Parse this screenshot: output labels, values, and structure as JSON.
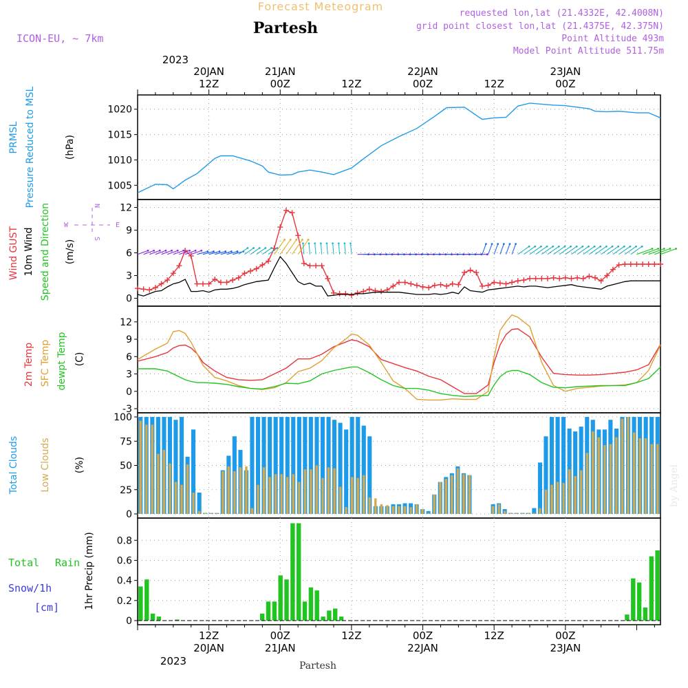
{
  "header": {
    "title": "Partesh",
    "subtitle": "Forecast Meteogram",
    "model": "ICON-EU, ~ 7km",
    "requested": "requested lon,lat (21.4332E, 42.4008N)",
    "closest": "grid point closest lon,lat (21.4375E, 42.375N)",
    "point_alt": "Point Altitude 493m",
    "model_alt": "Model Point Altitude 511.75m"
  },
  "top_axis": {
    "year": "2023",
    "labels": [
      {
        "d": "20JAN",
        "h": "12Z",
        "x": 12
      },
      {
        "d": "21JAN",
        "h": "00Z",
        "x": 24
      },
      {
        "d": "",
        "h": "12Z",
        "x": 36
      },
      {
        "d": "22JAN",
        "h": "00Z",
        "x": 48
      },
      {
        "d": "",
        "h": "12Z",
        "x": 60
      },
      {
        "d": "23JAN",
        "h": "00Z",
        "x": 72
      }
    ]
  },
  "bottom_axis": {
    "year": "2023",
    "footer": "Partesh",
    "labels": [
      {
        "h": "12Z",
        "d": "20JAN",
        "x": 12
      },
      {
        "h": "00Z",
        "d": "21JAN",
        "x": 24
      },
      {
        "h": "12Z",
        "d": "",
        "x": 36
      },
      {
        "h": "00Z",
        "d": "22JAN",
        "x": 48
      },
      {
        "h": "12Z",
        "d": "",
        "x": 60
      },
      {
        "h": "00Z",
        "d": "23JAN",
        "x": 72
      }
    ]
  },
  "panel_labels": {
    "pressure": {
      "a": "PRMSL",
      "b": "Pressure Reduced to MSL",
      "unit": "(hPa)"
    },
    "wind": {
      "gust": "Wind GUST",
      "w10": "10m Wind",
      "sd": "Speed and Direction",
      "unit": "(m/s)",
      "compass_w": "W",
      "compass_e": "E",
      "compass_n": "N",
      "compass_s": "S"
    },
    "temp": {
      "t2m": "2m Temp",
      "sfc": "SFC Temp",
      "dew": "dewpt Temp",
      "unit": "(C)"
    },
    "clouds": {
      "total": "Total Clouds",
      "low": "Low Clouds",
      "unit": "(%)"
    },
    "precip": {
      "rain_a": "Total",
      "rain_b": "Rain",
      "snow": "Snow/1h",
      "snow_unit": "[cm]",
      "axis": "1hr Precip (mm)"
    }
  },
  "watermark": "by Angel",
  "colors": {
    "pressure": "#1e9be8",
    "gust": "#e8343c",
    "wind10": "#000000",
    "t2m": "#e8343c",
    "sfc": "#e0a030",
    "dew": "#22c422",
    "total_clouds": "#1e9be8",
    "low_clouds": "#d4aa50",
    "rain": "#22c422",
    "purple": "#b060e0",
    "orange_title": "#f0c070",
    "blue_label": "#1e9be8",
    "snow": "#3a3ae0"
  },
  "chart_data": [
    {
      "type": "line",
      "name": "pressure",
      "x_hours": [
        0,
        3,
        5,
        6,
        8,
        10,
        13,
        14,
        16,
        19,
        21,
        22,
        24,
        26,
        27,
        29,
        31,
        33,
        36,
        38,
        41,
        44,
        47,
        50,
        52,
        55,
        58,
        60,
        62,
        64,
        66,
        70,
        72,
        76,
        77,
        79,
        81,
        84,
        86,
        88
      ],
      "series": [
        {
          "name": "PRMSL",
          "values": [
            1003.5,
            1005.2,
            1005.1,
            1004.3,
            1006,
            1007.3,
            1010.3,
            1010.8,
            1010.8,
            1009.8,
            1008.8,
            1007.6,
            1007.0,
            1007.1,
            1007.6,
            1008.0,
            1007.6,
            1007.1,
            1008.4,
            1010.2,
            1012.8,
            1014.6,
            1016.2,
            1018.6,
            1020.3,
            1020.4,
            1018.0,
            1018.3,
            1018.4,
            1020.6,
            1021.2,
            1020.8,
            1020.7,
            1020.1,
            1019.6,
            1019.5,
            1019.6,
            1019.3,
            1019.3,
            1018.3
          ]
        }
      ],
      "ylim": [
        1003,
        1022
      ],
      "yticks": [
        1005,
        1010,
        1015,
        1020
      ]
    },
    {
      "type": "line",
      "name": "wind",
      "x_hours": [
        0,
        1,
        2,
        3,
        4,
        5,
        6,
        7,
        8,
        9,
        10,
        11,
        12,
        13,
        14,
        15,
        16,
        17,
        18,
        19,
        20,
        21,
        22,
        23,
        24,
        25,
        26,
        27,
        28,
        29,
        30,
        31,
        32,
        33,
        34,
        35,
        36,
        37,
        38,
        39,
        40,
        41,
        42,
        43,
        44,
        45,
        46,
        47,
        48,
        49,
        50,
        51,
        52,
        53,
        54,
        55,
        56,
        57,
        58,
        59,
        60,
        61,
        62,
        63,
        64,
        65,
        66,
        67,
        68,
        69,
        70,
        71,
        72,
        73,
        74,
        75,
        76,
        77,
        78,
        79,
        80,
        81,
        82,
        83,
        84,
        85,
        86,
        87,
        88
      ],
      "series": [
        {
          "name": "Wind GUST",
          "values": [
            1.3,
            1.2,
            1.1,
            1.4,
            1.9,
            2.4,
            3.3,
            4.3,
            6.3,
            5.6,
            1.9,
            1.9,
            1.9,
            2.5,
            2.1,
            2.1,
            2.4,
            2.7,
            3.3,
            3.6,
            3.9,
            4.4,
            4.9,
            6.6,
            9.4,
            11.6,
            11.3,
            8.3,
            4.6,
            4.3,
            4.3,
            4.3,
            2.6,
            0.7,
            0.6,
            0.6,
            0.4,
            0.7,
            0.9,
            1.2,
            1.0,
            0.9,
            1.1,
            1.6,
            2.1,
            2.1,
            1.9,
            1.7,
            1.5,
            1.4,
            1.7,
            1.8,
            1.6,
            1.9,
            1.8,
            3.4,
            3.7,
            3.4,
            1.6,
            1.7,
            2.1,
            2.0,
            1.9,
            2.1,
            2.3,
            2.4,
            2.6,
            2.6,
            2.6,
            2.6,
            2.7,
            2.6,
            2.7,
            2.6,
            2.7,
            2.6,
            2.9,
            2.7,
            2.3,
            3.0,
            3.8,
            4.4,
            4.5,
            4.5,
            4.5,
            4.5,
            4.5,
            4.5,
            4.5
          ]
        },
        {
          "name": "10m Wind",
          "values": [
            0.5,
            0.3,
            0.6,
            0.9,
            1.0,
            1.5,
            1.9,
            2.1,
            2.5,
            0.9,
            0.9,
            1.0,
            0.8,
            1.1,
            1.2,
            1.2,
            1.3,
            1.5,
            1.8,
            2.0,
            2.2,
            2.3,
            2.4,
            4.0,
            5.5,
            4.6,
            3.4,
            2.2,
            1.8,
            2.0,
            1.6,
            1.6,
            0.3,
            0.4,
            0.5,
            0.5,
            0.5,
            0.6,
            0.6,
            0.7,
            0.8,
            0.8,
            0.8,
            0.8,
            0.8,
            0.7,
            0.6,
            0.5,
            0.5,
            0.5,
            0.6,
            0.5,
            0.6,
            0.8,
            0.6,
            1.5,
            1.0,
            0.9,
            0.8,
            1.1,
            1.2,
            1.3,
            1.4,
            1.5,
            1.6,
            1.5,
            1.6,
            1.6,
            1.5,
            1.4,
            1.5,
            1.6,
            1.7,
            1.8,
            1.6,
            1.5,
            1.4,
            1.3,
            1.2,
            1.6,
            1.8,
            2.0,
            2.2,
            2.3,
            2.3,
            2.3,
            2.3,
            2.3,
            2.3
          ]
        }
      ],
      "ylim": [
        -0.5,
        12.5
      ],
      "yticks": [
        0,
        3,
        6,
        9,
        12
      ]
    },
    {
      "type": "line",
      "name": "temperature",
      "x_hours": [
        0,
        3,
        5,
        6,
        7,
        8,
        9,
        10,
        11,
        13,
        15,
        17,
        19,
        21,
        23,
        25,
        27,
        29,
        31,
        33,
        35,
        36,
        37,
        39,
        41,
        43,
        45,
        47,
        49,
        51,
        53,
        55,
        57,
        59,
        60,
        61,
        62,
        63,
        64,
        66,
        68,
        70,
        72,
        74,
        76,
        78,
        80,
        82,
        84,
        86,
        88
      ],
      "series": [
        {
          "name": "2m Temp",
          "values": [
            5.2,
            6.0,
            6.7,
            7.5,
            7.9,
            8.0,
            7.5,
            6.5,
            5.0,
            3.5,
            2.4,
            2.0,
            1.9,
            2.0,
            3.0,
            4.0,
            5.6,
            5.6,
            6.4,
            7.7,
            8.5,
            8.9,
            8.7,
            7.7,
            5.5,
            4.8,
            4.1,
            3.5,
            2.6,
            2.0,
            0.8,
            -0.4,
            -0.4,
            1.1,
            5.0,
            8.0,
            9.8,
            10.7,
            10.8,
            9.4,
            5.9,
            3.1,
            2.9,
            2.8,
            2.8,
            2.9,
            3.1,
            3.3,
            3.7,
            4.6,
            8.1
          ]
        },
        {
          "name": "SFC Temp",
          "values": [
            5.5,
            7.3,
            8.3,
            10.3,
            10.5,
            10.0,
            8.5,
            6.5,
            4.5,
            2.4,
            1.8,
            1.0,
            0.5,
            0.3,
            0.6,
            1.5,
            3.4,
            4.0,
            5.3,
            7.5,
            9.0,
            9.9,
            9.7,
            8.0,
            5.0,
            1.8,
            0.5,
            -1.4,
            -1.5,
            -1.5,
            -1.3,
            -1.4,
            -1.4,
            0.0,
            6.0,
            10.5,
            12.0,
            13.2,
            12.8,
            11.2,
            5.0,
            1.0,
            0.0,
            0.5,
            0.7,
            0.9,
            1.0,
            1.1,
            1.5,
            3.6,
            8.0
          ]
        },
        {
          "name": "dewpt Temp",
          "values": [
            3.9,
            3.9,
            3.5,
            3.0,
            2.5,
            2.0,
            1.7,
            1.5,
            1.5,
            1.4,
            1.2,
            0.8,
            0.5,
            0.4,
            0.8,
            1.4,
            1.3,
            1.8,
            3.0,
            3.6,
            4.0,
            4.2,
            4.2,
            3.2,
            2.0,
            1.0,
            0.5,
            0.5,
            0.2,
            -0.4,
            -0.7,
            -0.9,
            -0.8,
            -0.7,
            1.1,
            2.5,
            3.3,
            3.6,
            3.6,
            2.9,
            1.5,
            0.7,
            0.6,
            0.8,
            0.9,
            1.0,
            1.0,
            1.0,
            1.5,
            2.2,
            4.2
          ]
        }
      ],
      "ylim": [
        -3,
        14
      ],
      "yticks": [
        -3,
        0,
        3,
        6,
        9,
        12
      ]
    },
    {
      "type": "bar",
      "name": "clouds",
      "series": [
        {
          "name": "Total Clouds",
          "values": [
            100,
            100,
            100,
            100,
            100,
            100,
            97,
            100,
            59,
            87,
            22,
            1,
            1,
            1,
            45,
            60,
            80,
            66,
            45,
            100,
            100,
            100,
            100,
            100,
            100,
            100,
            100,
            100,
            100,
            100,
            100,
            100,
            100,
            97,
            94,
            87,
            100,
            100,
            91,
            80,
            8,
            8,
            8,
            10,
            10,
            11,
            11,
            10,
            5,
            3,
            20,
            33,
            38,
            42,
            49,
            42,
            40,
            0,
            0,
            0,
            10,
            11,
            5,
            1,
            1,
            1,
            1,
            6,
            53,
            80,
            100,
            100,
            100,
            88,
            85,
            90,
            100,
            97,
            87,
            87,
            97,
            88,
            100,
            100,
            100,
            100,
            100,
            100,
            100
          ]
        },
        {
          "name": "Low Clouds",
          "values": [
            96,
            92,
            92,
            62,
            66,
            52,
            33,
            30,
            51,
            22,
            3,
            1,
            1,
            1,
            44,
            49,
            44,
            48,
            49,
            6,
            30,
            48,
            38,
            41,
            41,
            38,
            41,
            33,
            46,
            46,
            50,
            37,
            48,
            47,
            28,
            7,
            38,
            37,
            40,
            17,
            16,
            10,
            9,
            8,
            8,
            8,
            7,
            10,
            5,
            1,
            20,
            33,
            36,
            40,
            47,
            41,
            40,
            0,
            0,
            0,
            8,
            10,
            3,
            1,
            1,
            1,
            1,
            1,
            6,
            25,
            30,
            33,
            32,
            46,
            39,
            45,
            63,
            85,
            79,
            71,
            72,
            79,
            98,
            100,
            84,
            78,
            78,
            72,
            72
          ]
        }
      ],
      "ylim": [
        0,
        100
      ],
      "yticks": [
        0,
        25,
        50,
        75,
        100
      ]
    },
    {
      "type": "bar",
      "name": "precipitation",
      "series": [
        {
          "name": "Total Rain",
          "values": [
            0.34,
            0.41,
            0.07,
            0.04,
            0,
            0,
            0.01,
            0,
            0,
            0,
            0,
            0,
            0,
            0,
            0,
            0,
            0,
            0,
            0,
            0,
            0.07,
            0.19,
            0.19,
            0.45,
            0.41,
            0.97,
            0.97,
            0.19,
            0.33,
            0.3,
            0.04,
            0.1,
            0.12,
            0.04,
            0,
            0,
            0,
            0,
            0,
            0,
            0,
            0,
            0,
            0,
            0,
            0,
            0,
            0,
            0,
            0,
            0,
            0,
            0,
            0,
            0,
            0,
            0,
            0,
            0,
            0,
            0,
            0,
            0,
            0,
            0,
            0,
            0,
            0,
            0,
            0,
            0,
            0,
            0,
            0,
            0,
            0,
            0,
            0,
            0,
            0,
            0.06,
            0.42,
            0.38,
            0.13,
            0.64,
            0.7
          ]
        }
      ],
      "ylim": [
        0,
        0.98
      ],
      "yticks": [
        0,
        0.2,
        0.4,
        0.6,
        0.8
      ]
    }
  ]
}
